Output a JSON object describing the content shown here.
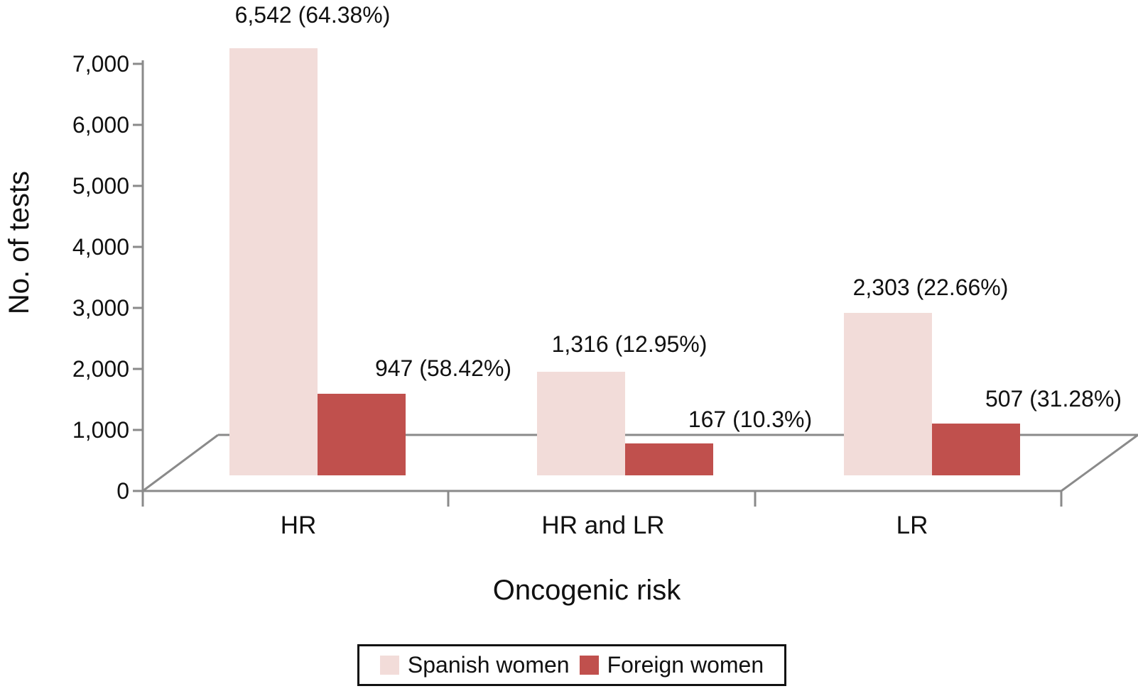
{
  "chart_data": {
    "type": "bar",
    "title": "",
    "xlabel": "Oncogenic risk",
    "ylabel": "No. of tests",
    "categories": [
      "HR",
      "HR and LR",
      "LR"
    ],
    "series": [
      {
        "name": "Spanish women",
        "color": "#f2dcd9",
        "values": [
          6542,
          1316,
          2303
        ],
        "data_labels": [
          "6,542 (64.38%)",
          "1,316 (12.95%)",
          "2,303 (22.66%)"
        ]
      },
      {
        "name": "Foreign women",
        "color": "#c0504d",
        "values": [
          947,
          167,
          507
        ],
        "data_labels": [
          "947 (58.42%)",
          "167 (10.3%)",
          "507 (31.28%)"
        ]
      }
    ],
    "y_ticks": [
      "0",
      "1,000",
      "2,000",
      "3,000",
      "4,000",
      "5,000",
      "6,000",
      "7,000"
    ],
    "ylim": [
      0,
      7000
    ],
    "grid": false,
    "legend_position": "bottom",
    "style": "3d-perspective-floor",
    "axis_line_color": "#8a8a8a"
  }
}
